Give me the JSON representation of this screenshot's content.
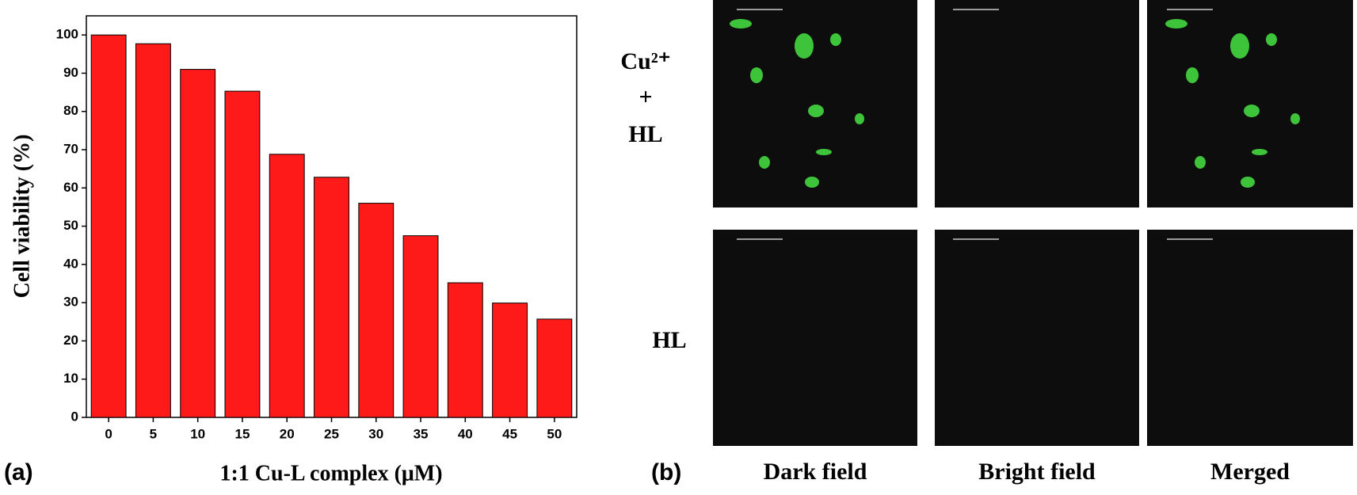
{
  "chart_data": {
    "type": "bar",
    "xlabel": "1:1 Cu-L complex (μM)",
    "ylabel": "Cell viability (%)",
    "categories": [
      "0",
      "5",
      "10",
      "15",
      "20",
      "25",
      "30",
      "35",
      "40",
      "45",
      "50"
    ],
    "values": [
      100,
      97.7,
      91,
      85.3,
      68.8,
      62.8,
      56,
      47.5,
      35.2,
      29.9,
      25.7
    ],
    "color": "#ff1a1a",
    "ylim": [
      0,
      105
    ],
    "yticks": [
      0,
      10,
      20,
      30,
      40,
      50,
      60,
      70,
      80,
      90,
      100
    ],
    "grid": false
  },
  "panel_labels": [
    "(a)",
    "(b)"
  ],
  "micrographs": {
    "row_labels": [
      [
        "Cu²⁺",
        "+",
        "HL"
      ],
      [
        "HL"
      ]
    ],
    "column_labels": [
      "Dark field",
      "Bright field",
      "Merged"
    ]
  }
}
